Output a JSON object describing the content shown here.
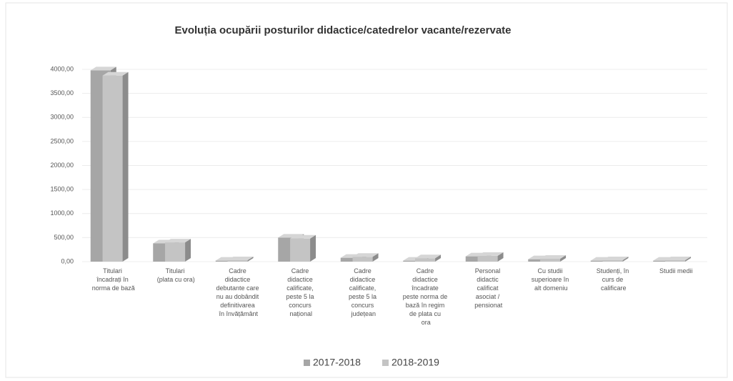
{
  "chart_data": {
    "type": "bar",
    "title": "Evoluția ocupării posturilor didactice/catedrelor vacante/rezervate",
    "categories": [
      "Titulari încadrați în norma de bază",
      "Titulari (plata cu ora)",
      "Cadre didactice debutante care nu au dobândit definitivarea în învățământ",
      "Cadre didactice calificate, peste 5 la concurs național",
      "Cadre didactice calificate, peste 5 la concurs județean",
      "Cadre didactice încadrate peste norma de bază în regim de plata cu ora",
      "Personal didactic calificat asociat / pensionat",
      "Cu studii superioare în alt domeniu",
      "Studenți, în curs de calificare",
      "Studii medii"
    ],
    "series": [
      {
        "name": "2017-2018",
        "color": "#a6a6a6",
        "values": [
          3980,
          380,
          20,
          500,
          80,
          20,
          110,
          50,
          20,
          20
        ]
      },
      {
        "name": "2018-2019",
        "color": "#c4c4c4",
        "values": [
          3870,
          400,
          30,
          480,
          100,
          70,
          120,
          60,
          30,
          30
        ]
      }
    ],
    "ylim": [
      0,
      4000
    ],
    "yticks": [
      {
        "value": 0,
        "label": "0,00"
      },
      {
        "value": 500,
        "label": "500,00"
      },
      {
        "value": 1000,
        "label": "1000,00"
      },
      {
        "value": 1500,
        "label": "1500,00"
      },
      {
        "value": 2000,
        "label": "2000,00"
      },
      {
        "value": 2500,
        "label": "2500,00"
      },
      {
        "value": 3000,
        "label": "3000,00"
      },
      {
        "value": 3500,
        "label": "3500,00"
      },
      {
        "value": 4000,
        "label": "4000,00"
      }
    ],
    "grid": true
  }
}
